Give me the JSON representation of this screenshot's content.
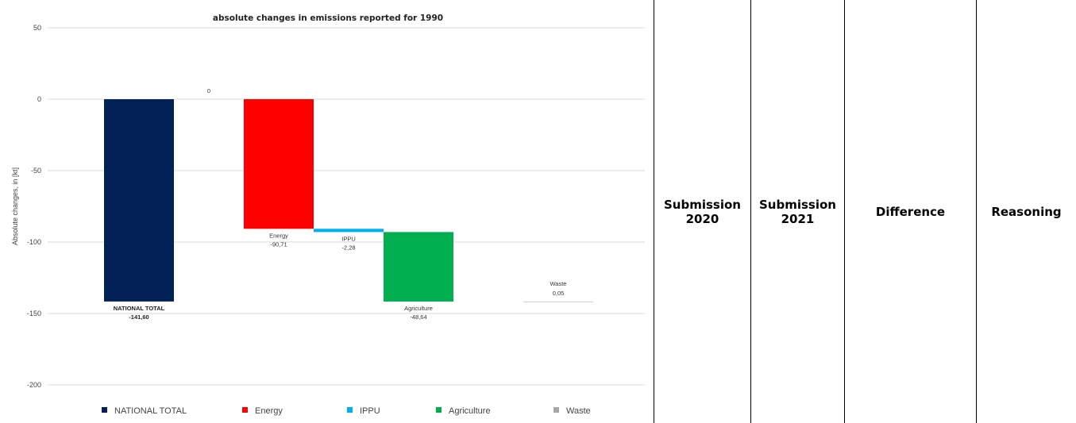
{
  "chart_data": {
    "type": "bar",
    "title": "absolute changes in emissions reported for 1990",
    "ylabel": "Absolute changes, in [kt]",
    "xlabel": "",
    "ylim": [
      -200,
      50
    ],
    "yticks": [
      50,
      0,
      -50,
      -100,
      -150,
      -200
    ],
    "grid": true,
    "legend_position": "bottom",
    "style": "waterfall",
    "categories": [
      "NATIONAL TOTAL",
      "",
      "Energy",
      "IPPU",
      "Agriculture",
      "",
      "Waste"
    ],
    "values": [
      -141.6,
      0,
      -90.71,
      -2.28,
      -48.64,
      0,
      0.05
    ],
    "data_labels": [
      {
        "name": "NATIONAL TOTAL",
        "value": "-141,60"
      },
      {
        "name": "",
        "value": "0"
      },
      {
        "name": "Energy",
        "value": "-90,71"
      },
      {
        "name": "IPPU",
        "value": "-2,28"
      },
      {
        "name": "Agriculture",
        "value": "-48,64"
      },
      {
        "name": "",
        "value": ""
      },
      {
        "name": "Waste",
        "value": "0,05"
      }
    ],
    "colors": [
      "#012157",
      "#ffffff",
      "#ff0000",
      "#00b0f0",
      "#00b050",
      "#ffffff",
      "#bfbfbf"
    ],
    "legend": [
      {
        "label": "NATIONAL TOTAL",
        "color": "#012157"
      },
      {
        "label": "Energy",
        "color": "#ff0000"
      },
      {
        "label": "IPPU",
        "color": "#00b0f0"
      },
      {
        "label": "Agriculture",
        "color": "#00b050"
      },
      {
        "label": "Waste",
        "color": "#a6a6a6"
      }
    ]
  },
  "table_header": [
    "Submission 2020",
    "Submission 2021",
    "Difference",
    "Reasoning"
  ]
}
